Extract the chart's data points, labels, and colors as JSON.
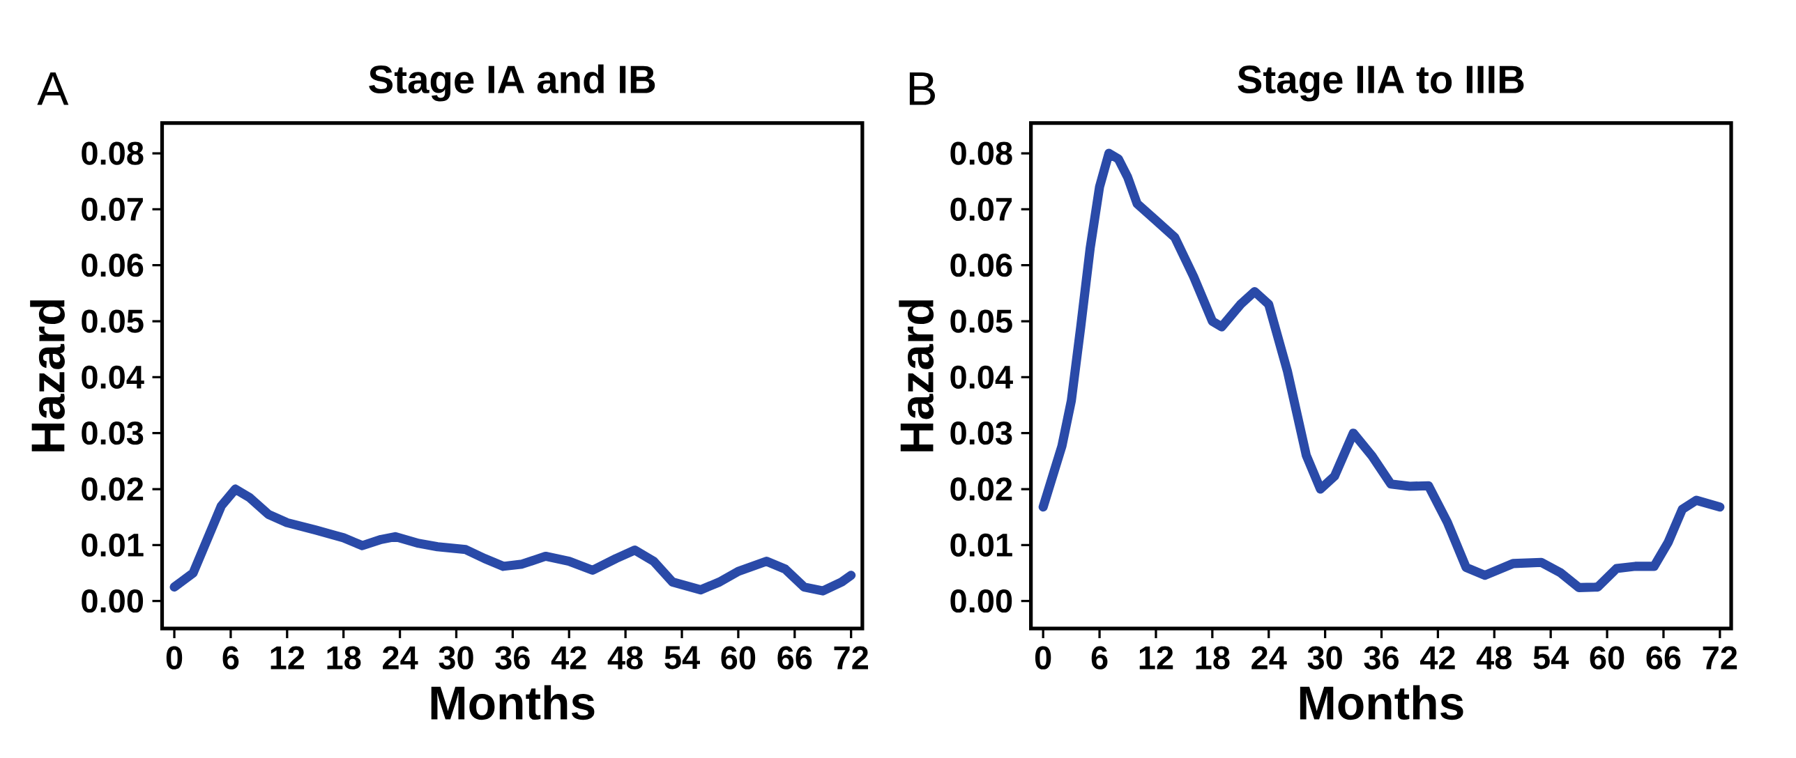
{
  "chart_data": [
    {
      "type": "line",
      "title": "Stage IA and IB",
      "xlabel": "Months",
      "ylabel": "Hazard",
      "annotations": [
        "A"
      ],
      "color": "#2a4aa8",
      "marker": "none",
      "grid": false,
      "x": [
        0,
        2,
        4,
        5,
        6.5,
        8,
        10,
        12,
        15,
        18,
        20,
        22,
        23.5,
        26,
        28,
        31,
        33,
        35,
        37,
        39.5,
        42,
        44.5,
        47,
        49,
        51,
        53,
        56,
        58,
        60,
        63,
        65,
        67,
        69,
        71,
        72
      ],
      "values": [
        0.0025,
        0.005,
        0.013,
        0.017,
        0.02,
        0.0185,
        0.0155,
        0.014,
        0.0127,
        0.0113,
        0.0099,
        0.011,
        0.0115,
        0.0103,
        0.0097,
        0.0092,
        0.0076,
        0.0062,
        0.0066,
        0.008,
        0.0071,
        0.0055,
        0.0076,
        0.0091,
        0.0071,
        0.0034,
        0.002,
        0.0034,
        0.0053,
        0.0071,
        0.0057,
        0.0025,
        0.0018,
        0.0034,
        0.0046
      ],
      "xlim": [
        -1.3,
        73.2
      ],
      "ylim": [
        -0.0049,
        0.0854
      ],
      "xticks": [
        0,
        6,
        12,
        18,
        24,
        30,
        36,
        42,
        48,
        54,
        60,
        66,
        72
      ],
      "yticks": [
        {
          "value": 0,
          "label": "0.00"
        },
        {
          "value": 0.01,
          "label": "0.01"
        },
        {
          "value": 0.02,
          "label": "0.02"
        },
        {
          "value": 0.03,
          "label": "0.03"
        },
        {
          "value": 0.04,
          "label": "0.04"
        },
        {
          "value": 0.05,
          "label": "0.05"
        },
        {
          "value": 0.06,
          "label": "0.06"
        },
        {
          "value": 0.07,
          "label": "0.07"
        },
        {
          "value": 0.08,
          "label": "0.08"
        }
      ]
    },
    {
      "type": "line",
      "title": "Stage IIA to IIIB",
      "xlabel": "Months",
      "ylabel": "Hazard",
      "annotations": [
        "B"
      ],
      "color": "#2a4aa8",
      "marker": "none",
      "grid": false,
      "x": [
        0,
        2,
        3,
        4,
        5,
        6,
        7,
        8,
        9,
        10,
        12,
        14,
        16,
        18,
        19,
        21,
        22.5,
        24,
        26,
        28,
        29.5,
        31,
        33,
        35,
        37,
        39,
        41,
        43,
        45,
        47,
        50,
        53,
        55,
        57,
        59,
        61,
        63,
        65,
        66.5,
        68,
        69.5,
        72
      ],
      "values": [
        0.0168,
        0.0277,
        0.0358,
        0.049,
        0.063,
        0.074,
        0.08,
        0.079,
        0.0757,
        0.071,
        0.068,
        0.065,
        0.058,
        0.05,
        0.049,
        0.053,
        0.0553,
        0.053,
        0.041,
        0.026,
        0.02,
        0.0223,
        0.03,
        0.0259,
        0.0209,
        0.0205,
        0.0206,
        0.0141,
        0.006,
        0.0046,
        0.0067,
        0.0069,
        0.0051,
        0.0024,
        0.0025,
        0.0058,
        0.0062,
        0.0062,
        0.0105,
        0.0164,
        0.018,
        0.0168
      ],
      "xlim": [
        -1.3,
        73.2
      ],
      "ylim": [
        -0.0049,
        0.0854
      ],
      "xticks": [
        0,
        6,
        12,
        18,
        24,
        30,
        36,
        42,
        48,
        54,
        60,
        66,
        72
      ],
      "yticks": [
        {
          "value": 0,
          "label": "0.00"
        },
        {
          "value": 0.01,
          "label": "0.01"
        },
        {
          "value": 0.02,
          "label": "0.02"
        },
        {
          "value": 0.03,
          "label": "0.03"
        },
        {
          "value": 0.04,
          "label": "0.04"
        },
        {
          "value": 0.05,
          "label": "0.05"
        },
        {
          "value": 0.06,
          "label": "0.06"
        },
        {
          "value": 0.07,
          "label": "0.07"
        },
        {
          "value": 0.08,
          "label": "0.08"
        }
      ]
    }
  ]
}
